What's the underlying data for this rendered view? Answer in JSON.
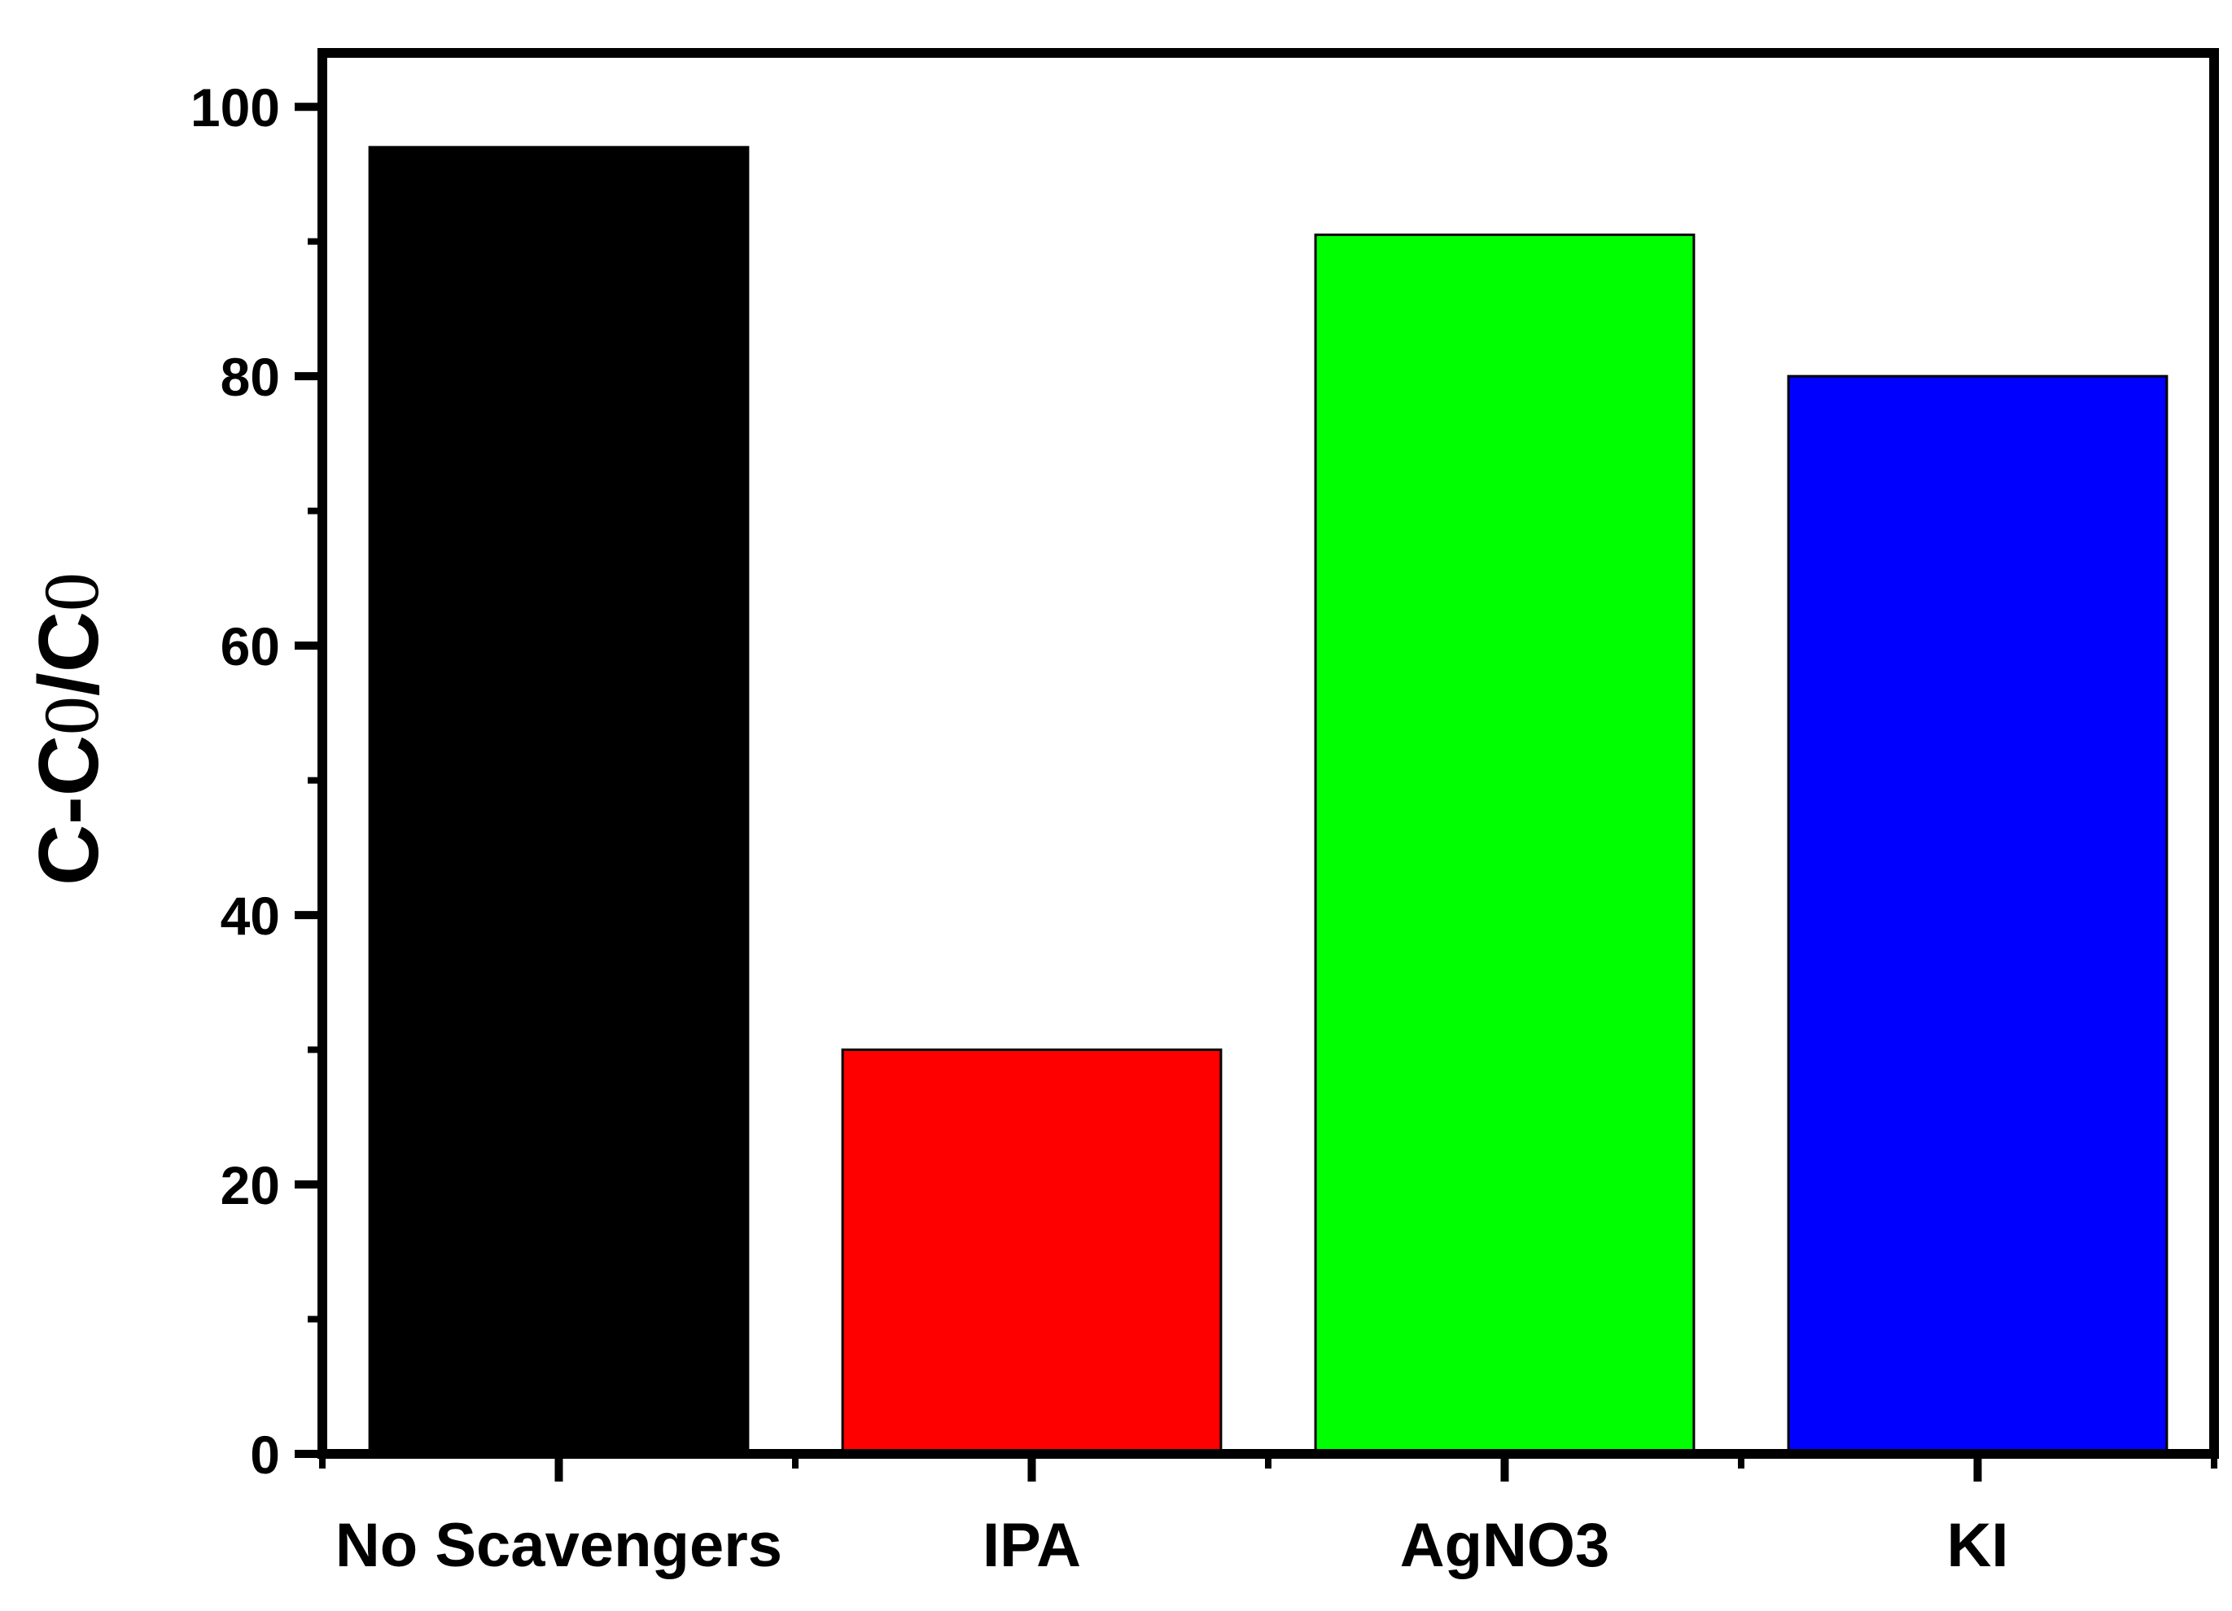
{
  "chart_data": {
    "type": "bar",
    "title": "",
    "xlabel": "",
    "ylabel": {
      "parts": [
        "C-C",
        "0",
        "/C",
        "0"
      ]
    },
    "categories": [
      "No Scavengers",
      "IPA",
      "AgNO3",
      "KI"
    ],
    "values": [
      97,
      30,
      90.5,
      80
    ],
    "colors": [
      "#000000",
      "#ff0000",
      "#00ff00",
      "#0000ff"
    ],
    "ylim": [
      0,
      104
    ],
    "yticks": [
      0,
      20,
      40,
      60,
      80,
      100
    ],
    "yminor_ticks": [
      10,
      30,
      50,
      70,
      90
    ],
    "grid": false,
    "legend": "none"
  }
}
